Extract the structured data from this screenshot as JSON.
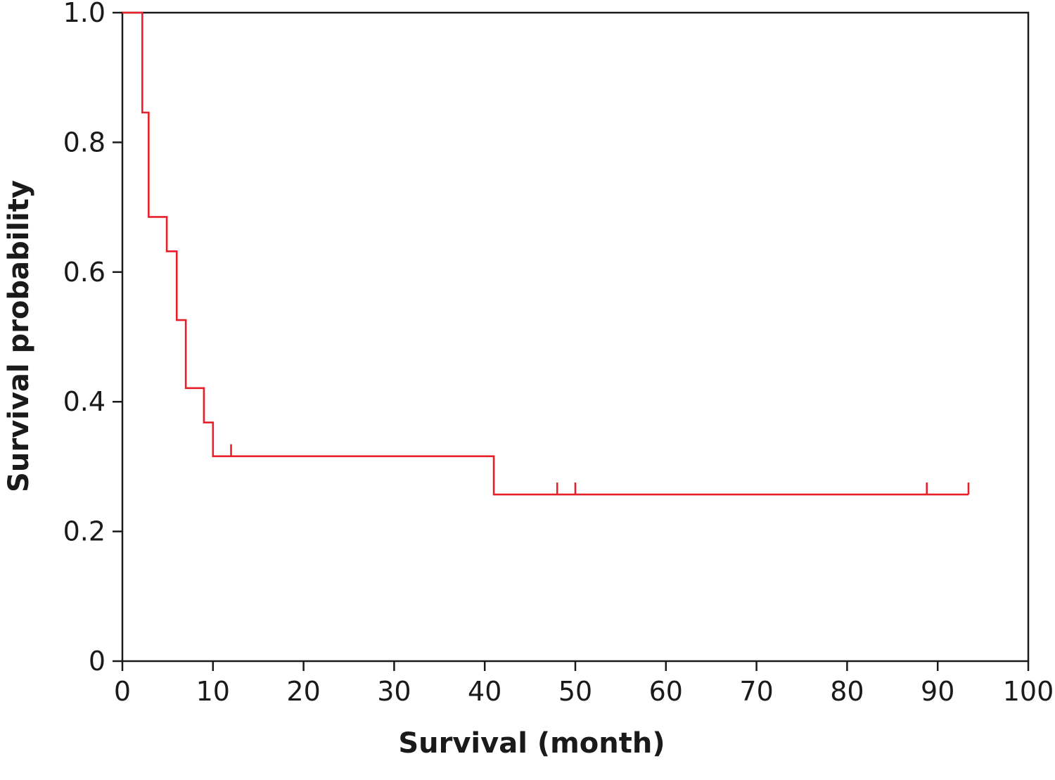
{
  "chart_data": {
    "type": "line",
    "title": "",
    "xlabel": "Survival (month)",
    "ylabel": "Survival probability",
    "xlim": [
      0,
      100
    ],
    "ylim": [
      0,
      1
    ],
    "x_ticks": [
      0,
      10,
      20,
      30,
      40,
      50,
      60,
      70,
      80,
      90,
      100
    ],
    "x_tick_labels": [
      "0",
      "10",
      "20",
      "30",
      "40",
      "50",
      "60",
      "70",
      "80",
      "90",
      "100"
    ],
    "y_ticks": [
      0,
      0.2,
      0.4,
      0.6,
      0.8,
      1.0
    ],
    "y_tick_labels": [
      "0",
      "0.2",
      "0.4",
      "0.6",
      "0.8",
      "1.0"
    ],
    "grid": false,
    "legend": "none",
    "line_color": "#e8202a",
    "series": [
      {
        "step": "post",
        "x": [
          0,
          2.2,
          2.9,
          4.9,
          6.0,
          7.0,
          9.0,
          10.0,
          41.0,
          93.4
        ],
        "y": [
          1.0,
          0.846,
          0.685,
          0.632,
          0.526,
          0.421,
          0.368,
          0.316,
          0.257,
          0.257
        ],
        "censored": [
          {
            "x": 12.0,
            "y": 0.316
          },
          {
            "x": 48.0,
            "y": 0.257
          },
          {
            "x": 50.0,
            "y": 0.257
          },
          {
            "x": 88.8,
            "y": 0.257
          },
          {
            "x": 93.4,
            "y": 0.257
          }
        ]
      }
    ]
  }
}
